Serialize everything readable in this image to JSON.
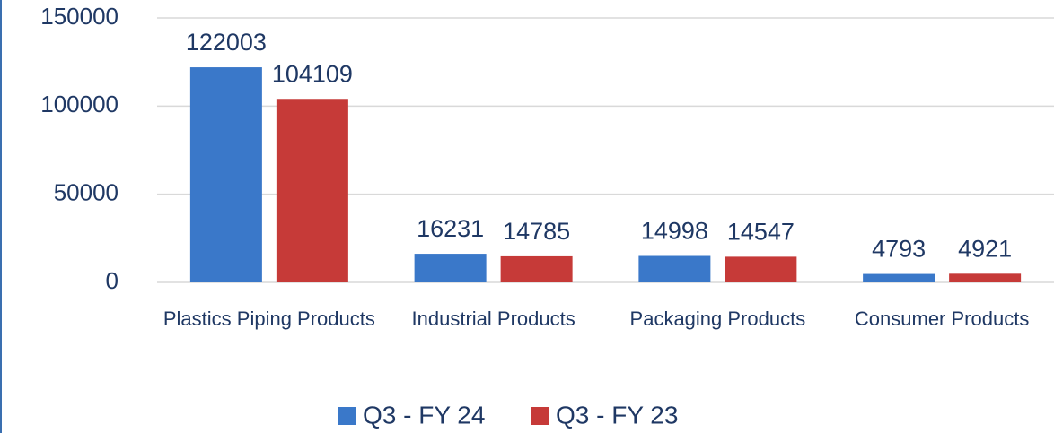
{
  "chart_data": {
    "type": "bar",
    "categories": [
      "Plastics Piping Products",
      "Industrial Products",
      "Packaging Products",
      "Consumer Products"
    ],
    "series": [
      {
        "name": "Q3 - FY 24",
        "color": "#3a78c9",
        "values": [
          122003,
          16231,
          14998,
          4793
        ]
      },
      {
        "name": "Q3 - FY 23",
        "color": "#c63a38",
        "values": [
          104109,
          14785,
          14547,
          4921
        ]
      }
    ],
    "ylim": [
      0,
      150000
    ],
    "yticks": [
      0,
      50000,
      100000,
      150000
    ],
    "grid": true,
    "legend": "bottom"
  }
}
